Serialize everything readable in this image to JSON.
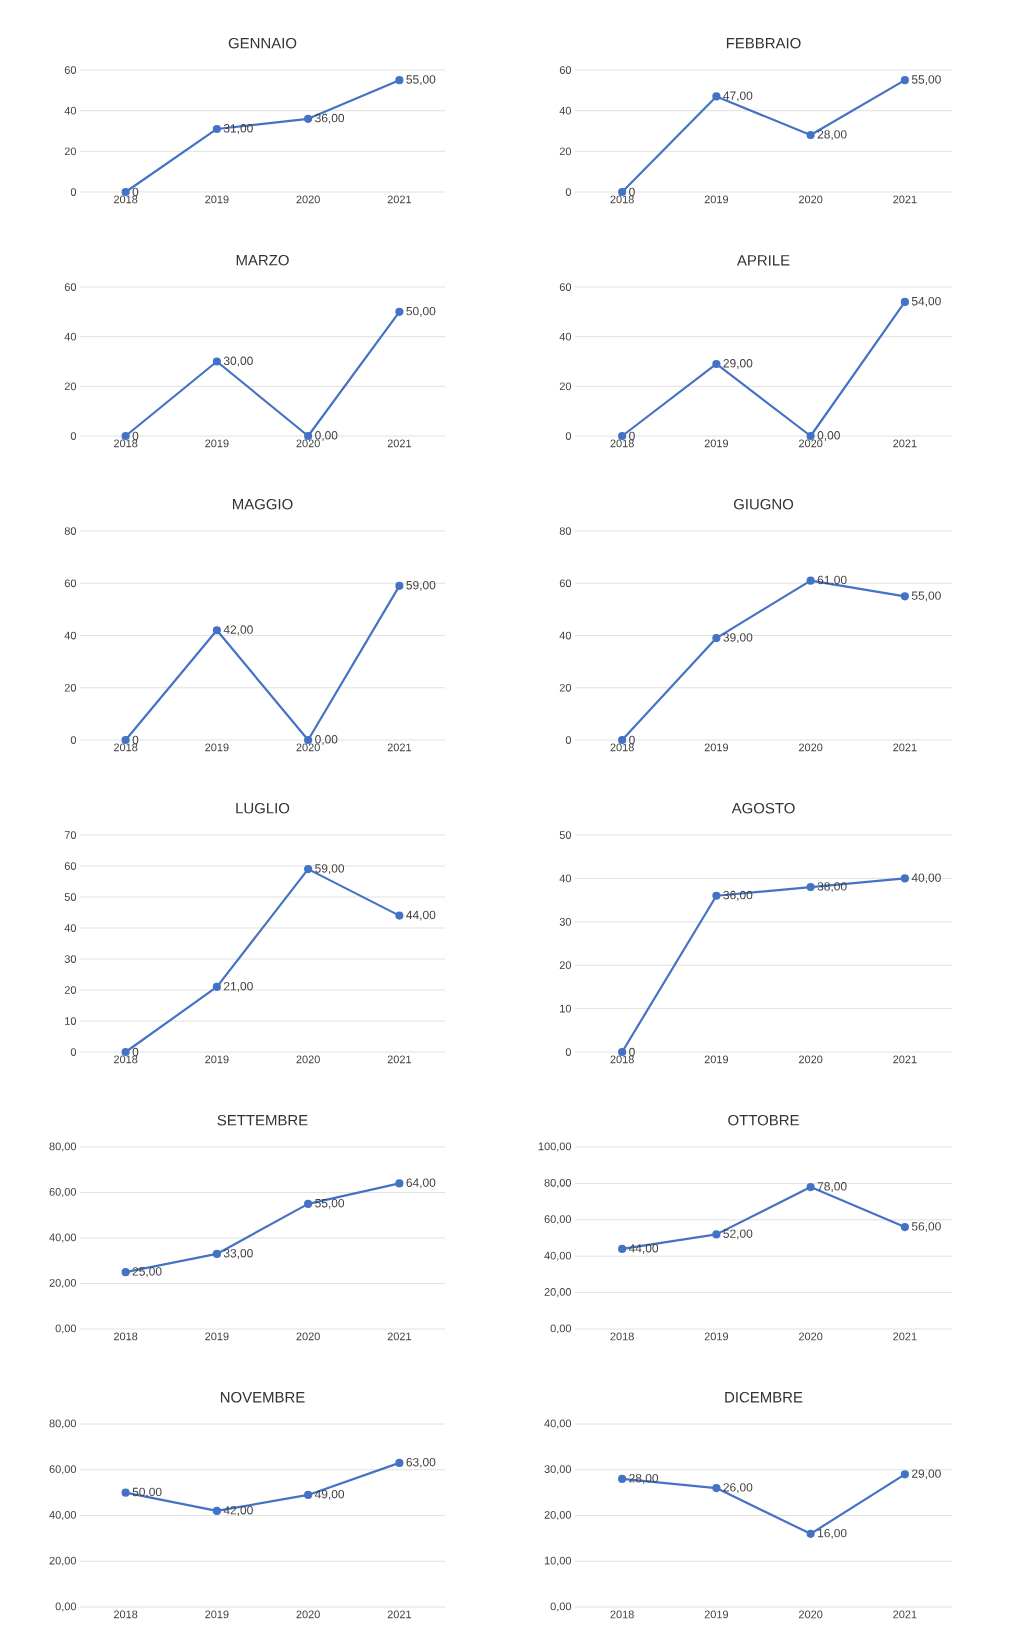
{
  "chart_data": [
    {
      "type": "line",
      "title": "GENNAIO",
      "categories": [
        "2018",
        "2019",
        "2020",
        "2021"
      ],
      "values": [
        0,
        31,
        36,
        55
      ],
      "value_labels": [
        "0",
        "31,00",
        "36,00",
        "55,00"
      ],
      "color": "#4472c4",
      "ylim": [
        0,
        60
      ],
      "yticks": [
        0,
        20,
        40,
        60
      ],
      "grid": "y",
      "marker": "circle"
    },
    {
      "type": "line",
      "title": "FEBBRAIO",
      "categories": [
        "2018",
        "2019",
        "2020",
        "2021"
      ],
      "values": [
        0,
        47,
        28,
        55
      ],
      "value_labels": [
        "0",
        "47,00",
        "28,00",
        "55,00"
      ],
      "color": "#4472c4",
      "ylim": [
        0,
        60
      ],
      "yticks": [
        0,
        20,
        40,
        60
      ],
      "grid": "y",
      "marker": "circle"
    },
    {
      "type": "line",
      "title": "MARZO",
      "categories": [
        "2018",
        "2019",
        "2020",
        "2021"
      ],
      "values": [
        0,
        30,
        0,
        50
      ],
      "value_labels": [
        "0",
        "30,00",
        "0,00",
        "50,00"
      ],
      "color": "#4472c4",
      "ylim": [
        0,
        60
      ],
      "yticks": [
        0,
        20,
        40,
        60
      ],
      "grid": "y",
      "marker": "circle"
    },
    {
      "type": "line",
      "title": "APRILE",
      "categories": [
        "2018",
        "2019",
        "2020",
        "2021"
      ],
      "values": [
        0,
        29,
        0,
        54
      ],
      "value_labels": [
        "0",
        "29,00",
        "0,00",
        "54,00"
      ],
      "color": "#4472c4",
      "ylim": [
        0,
        60
      ],
      "yticks": [
        0,
        20,
        40,
        60
      ],
      "grid": "y",
      "marker": "circle"
    },
    {
      "type": "line",
      "title": "MAGGIO",
      "categories": [
        "2018",
        "2019",
        "2020",
        "2021"
      ],
      "values": [
        0,
        42,
        0,
        59
      ],
      "value_labels": [
        "0",
        "42,00",
        "0,00",
        "59,00"
      ],
      "color": "#4472c4",
      "ylim": [
        0,
        80
      ],
      "yticks": [
        0,
        20,
        40,
        60,
        80
      ],
      "grid": "y",
      "marker": "circle"
    },
    {
      "type": "line",
      "title": "GIUGNO",
      "categories": [
        "2018",
        "2019",
        "2020",
        "2021"
      ],
      "values": [
        0,
        39,
        61,
        55
      ],
      "value_labels": [
        "0",
        "39,00",
        "61,00",
        "55,00"
      ],
      "color": "#4472c4",
      "ylim": [
        0,
        80
      ],
      "yticks": [
        0,
        20,
        40,
        60,
        80
      ],
      "grid": "y",
      "marker": "circle"
    },
    {
      "type": "line",
      "title": "LUGLIO",
      "categories": [
        "2018",
        "2019",
        "2020",
        "2021"
      ],
      "values": [
        0,
        21,
        59,
        44
      ],
      "value_labels": [
        "0",
        "21,00",
        "59,00",
        "44,00"
      ],
      "color": "#4472c4",
      "ylim": [
        0,
        70
      ],
      "yticks": [
        0,
        10,
        20,
        30,
        40,
        50,
        60,
        70
      ],
      "grid": "y",
      "marker": "circle"
    },
    {
      "type": "line",
      "title": "AGOSTO",
      "categories": [
        "2018",
        "2019",
        "2020",
        "2021"
      ],
      "values": [
        0,
        36,
        38,
        40
      ],
      "value_labels": [
        "0",
        "36,00",
        "38,00",
        "40,00"
      ],
      "color": "#4472c4",
      "ylim": [
        0,
        50
      ],
      "yticks": [
        0,
        10,
        20,
        30,
        40,
        50
      ],
      "grid": "y",
      "marker": "circle"
    },
    {
      "type": "line",
      "title": "SETTEMBRE",
      "categories": [
        "2018",
        "2019",
        "2020",
        "2021"
      ],
      "values": [
        25,
        33,
        55,
        64
      ],
      "value_labels": [
        "25,00",
        "33,00",
        "55,00",
        "64,00"
      ],
      "color": "#4472c4",
      "ylim": [
        0,
        80
      ],
      "yticks": [
        {
          "value": 0,
          "label": "0,00"
        },
        {
          "value": 20,
          "label": "20,00"
        },
        {
          "value": 40,
          "label": "40,00"
        },
        {
          "value": 60,
          "label": "60,00"
        },
        {
          "value": 80,
          "label": "80,00"
        }
      ],
      "grid": "y",
      "marker": "circle"
    },
    {
      "type": "line",
      "title": "OTTOBRE",
      "categories": [
        "2018",
        "2019",
        "2020",
        "2021"
      ],
      "values": [
        44,
        52,
        78,
        56
      ],
      "value_labels": [
        "44,00",
        "52,00",
        "78,00",
        "56,00"
      ],
      "color": "#4472c4",
      "ylim": [
        0,
        100
      ],
      "yticks": [
        {
          "value": 0,
          "label": "0,00"
        },
        {
          "value": 20,
          "label": "20,00"
        },
        {
          "value": 40,
          "label": "40,00"
        },
        {
          "value": 60,
          "label": "60,00"
        },
        {
          "value": 80,
          "label": "80,00"
        },
        {
          "value": 100,
          "label": "100,00"
        }
      ],
      "grid": "y",
      "marker": "circle"
    },
    {
      "type": "line",
      "title": "NOVEMBRE",
      "categories": [
        "2018",
        "2019",
        "2020",
        "2021"
      ],
      "values": [
        50,
        42,
        49,
        63
      ],
      "value_labels": [
        "50,00",
        "42,00",
        "49,00",
        "63,00"
      ],
      "color": "#4472c4",
      "ylim": [
        0,
        80
      ],
      "yticks": [
        {
          "value": 0,
          "label": "0,00"
        },
        {
          "value": 20,
          "label": "20,00"
        },
        {
          "value": 40,
          "label": "40,00"
        },
        {
          "value": 60,
          "label": "60,00"
        },
        {
          "value": 80,
          "label": "80,00"
        }
      ],
      "grid": "y",
      "marker": "circle"
    },
    {
      "type": "line",
      "title": "DICEMBRE",
      "categories": [
        "2018",
        "2019",
        "2020",
        "2021"
      ],
      "values": [
        28,
        26,
        16,
        29
      ],
      "value_labels": [
        "28,00",
        "26,00",
        "16,00",
        "29,00"
      ],
      "color": "#4472c4",
      "ylim": [
        0,
        40
      ],
      "yticks": [
        {
          "value": 0,
          "label": "0,00"
        },
        {
          "value": 10,
          "label": "10,00"
        },
        {
          "value": 20,
          "label": "20,00"
        },
        {
          "value": 30,
          "label": "30,00"
        },
        {
          "value": 40,
          "label": "40,00"
        }
      ],
      "grid": "y",
      "marker": "circle"
    }
  ]
}
